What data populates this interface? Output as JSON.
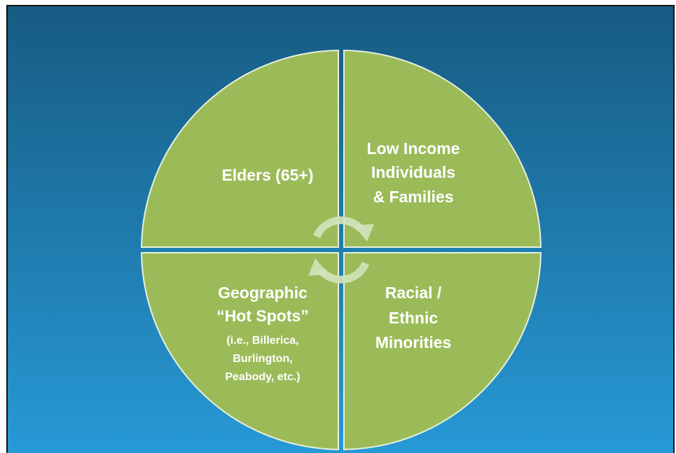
{
  "quadrants": [
    {
      "lines": [
        "Elders (65+)"
      ]
    },
    {
      "lines": [
        "Low Income",
        "Individuals",
        "& Families"
      ]
    },
    {
      "lines": [
        "Geographic",
        "“Hot Spots”",
        "(i.e., Billerica,",
        "Burlington,",
        "Peabody, etc.)"
      ]
    },
    {
      "lines": [
        "Racial /",
        "Ethnic",
        "Minorities"
      ]
    }
  ]
}
